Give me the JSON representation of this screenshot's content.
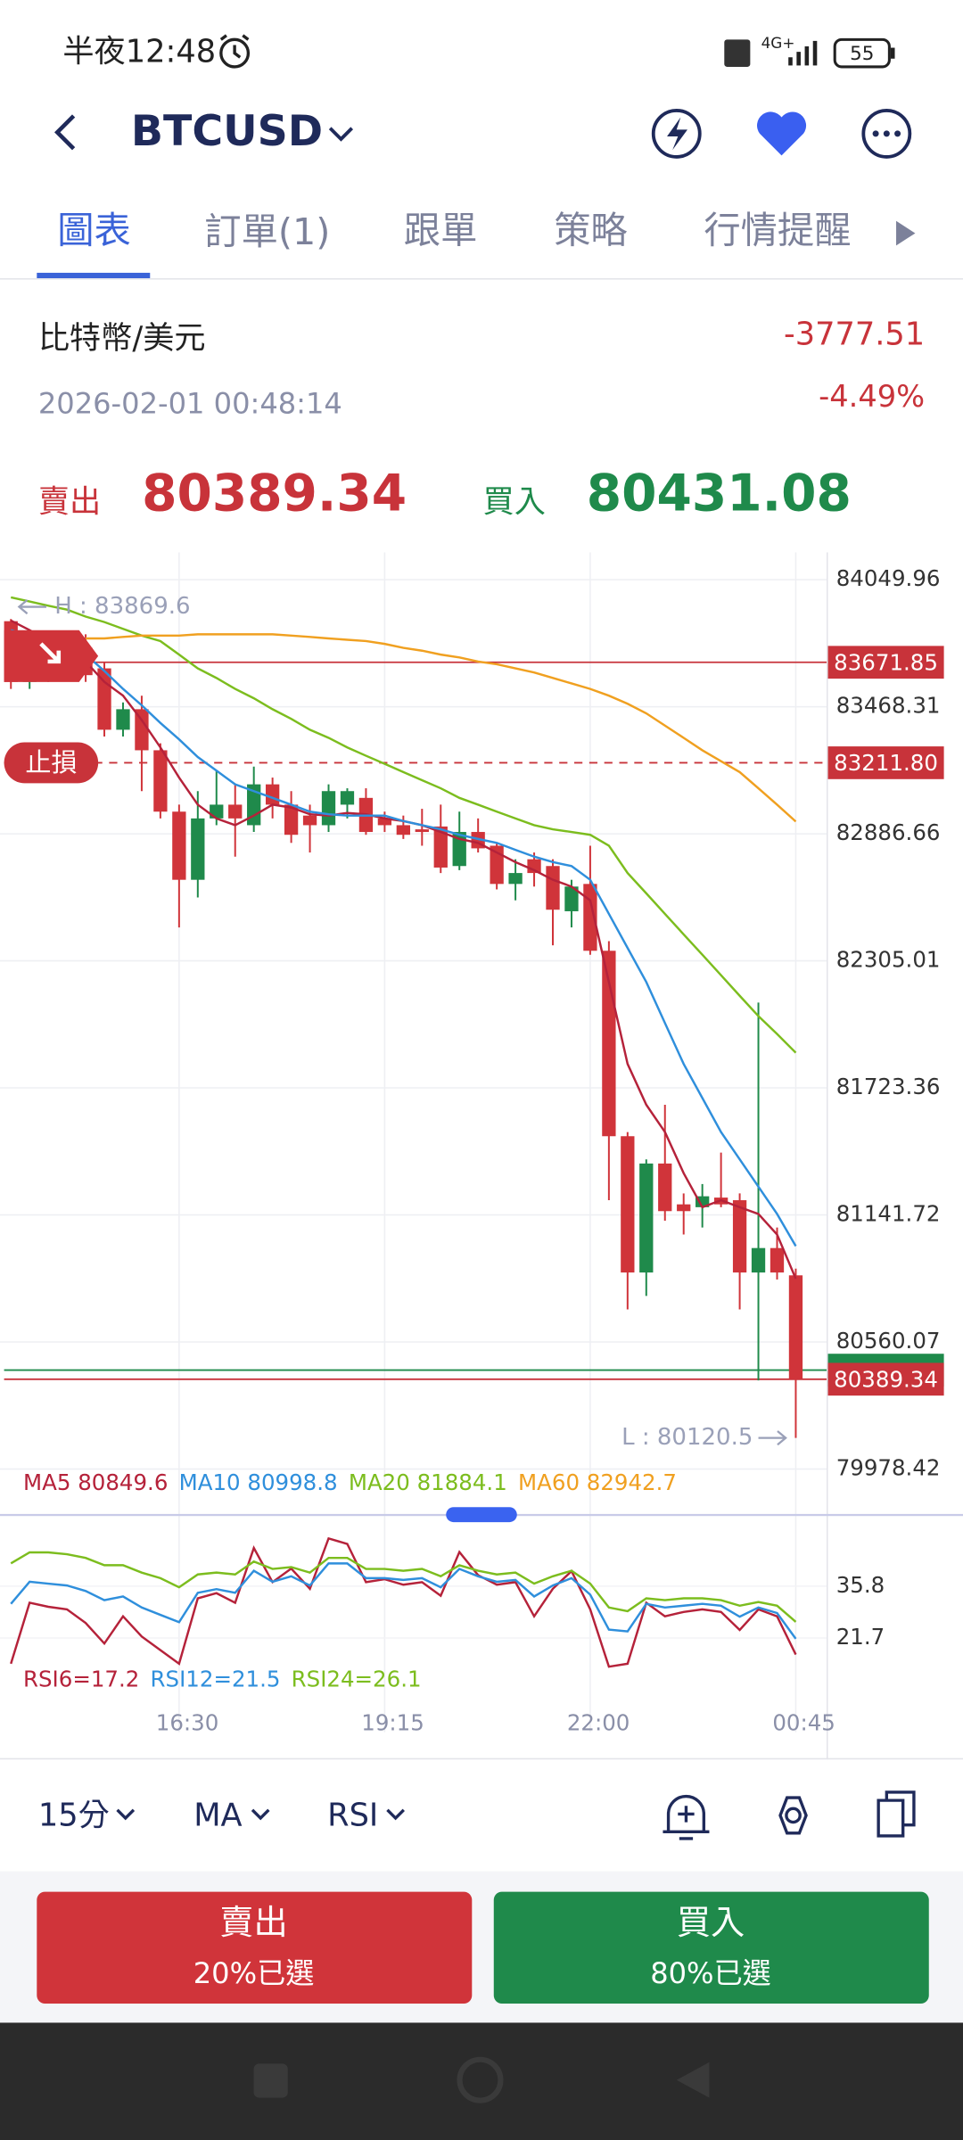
{
  "status_bar": {
    "time": "半夜12:48",
    "network": "4G+",
    "battery": "55"
  },
  "header": {
    "symbol": "BTCUSD"
  },
  "tabs": [
    "圖表",
    "訂單(1)",
    "跟單",
    "策略",
    "行情提醒"
  ],
  "quote": {
    "name": "比特幣/美元",
    "change": "-3777.51",
    "timestamp": "2026-02-01 00:48:14",
    "change_pct": "-4.49%",
    "sell_label": "賣出",
    "sell_price": "80389.34",
    "buy_label": "買入",
    "buy_price": "80431.08"
  },
  "chart_data": {
    "type": "candlestick",
    "categories": [
      null,
      null,
      null,
      null,
      null,
      null,
      null,
      null,
      null,
      "16:30",
      null,
      null,
      null,
      null,
      null,
      null,
      null,
      null,
      null,
      null,
      "19:15",
      null,
      null,
      null,
      null,
      null,
      null,
      null,
      null,
      null,
      null,
      "22:00",
      null,
      null,
      null,
      null,
      null,
      null,
      null,
      null,
      null,
      null,
      "00:45"
    ],
    "open": [
      83860,
      83582,
      83675,
      83644,
      83738,
      83644,
      83363,
      83457,
      83269,
      82988,
      82676,
      82957,
      83020,
      82926,
      83113,
      83020,
      82970,
      82926,
      83020,
      83051,
      82957,
      82926,
      82907,
      82920,
      82739,
      82895,
      82832,
      82657,
      82770,
      82739,
      82532,
      82657,
      82351,
      81502,
      80878,
      81377,
      81190,
      81177,
      81221,
      81209,
      80878,
      80990,
      80865
    ],
    "high": [
      83869.6,
      83769,
      83769,
      83800,
      83800,
      83675,
      83488,
      83519,
      83301,
      83020,
      83082,
      83176,
      83113,
      83194,
      83144,
      83082,
      83020,
      83113,
      83095,
      83095,
      82988,
      82970,
      83001,
      83020,
      82988,
      82957,
      82845,
      82770,
      82801,
      82770,
      82676,
      82832,
      82395,
      81521,
      81396,
      81646,
      81240,
      81283,
      81427,
      81240,
      82114,
      81084,
      80896
    ],
    "low": [
      83550,
      83550,
      83582,
      83613,
      83582,
      83332,
      83332,
      83082,
      82957,
      82458,
      82595,
      82926,
      82782,
      82895,
      82957,
      82845,
      82801,
      82895,
      82957,
      82882,
      82895,
      82863,
      82832,
      82707,
      82720,
      82801,
      82632,
      82582,
      82645,
      82376,
      82458,
      82333,
      81209,
      80709,
      80771,
      81115,
      81052,
      81084,
      81177,
      80709,
      80384,
      80846,
      80120.5
    ],
    "close": [
      83582,
      83675,
      83644,
      83738,
      83613,
      83363,
      83457,
      83269,
      82988,
      82676,
      82957,
      83020,
      82957,
      83113,
      83020,
      82882,
      82926,
      83082,
      83082,
      82895,
      82926,
      82882,
      82895,
      82732,
      82895,
      82820,
      82657,
      82707,
      82707,
      82539,
      82645,
      82351,
      81502,
      80878,
      81377,
      81159,
      81159,
      81227,
      81190,
      80878,
      80990,
      80878,
      80389.34
    ],
    "up_color": "#1f8a4b",
    "down_color": "#d0343a",
    "ylim": [
      79785,
      84175
    ],
    "yticks": [
      84049.96,
      83468.31,
      82886.66,
      82305.01,
      81723.36,
      81141.72,
      80560.07,
      79978.42
    ],
    "grid": true,
    "high_mark": {
      "value": 83869.6,
      "label": "H : 83869.6"
    },
    "low_mark": {
      "value": 80120.5,
      "label": "L : 80120.5"
    },
    "price_lines": [
      {
        "value": 83671.85,
        "color": "#c8333a"
      },
      {
        "value": 83211.8,
        "label": "83211.80",
        "color": "#c8333a",
        "dashed": true,
        "note": "止損"
      },
      {
        "value": 80431.08,
        "color": "#1f8a4b",
        "label_visible": false
      },
      {
        "value": 80389.34,
        "color": "#c8333a"
      }
    ],
    "series": [
      {
        "name": "MA5 80849.6",
        "color": "#b5223a",
        "values": [
          83863,
          83819,
          83769,
          83719,
          83675,
          83582,
          83519,
          83407,
          83282,
          83144,
          83020,
          82957,
          82926,
          82970,
          83020,
          83007,
          82976,
          82970,
          82982,
          82976,
          82957,
          82945,
          82926,
          82895,
          82863,
          82845,
          82801,
          82757,
          82720,
          82676,
          82645,
          82582,
          82208,
          81833,
          81646,
          81521,
          81333,
          81177,
          81209,
          81177,
          81146,
          81052,
          80849.6
        ]
      },
      {
        "name": "MA10 80998.8",
        "color": "#2f8fdc",
        "values": [
          83819,
          83794,
          83756,
          83732,
          83707,
          83632,
          83550,
          83475,
          83394,
          83319,
          83238,
          83176,
          83113,
          83082,
          83051,
          83020,
          82988,
          82976,
          82970,
          82970,
          82970,
          82945,
          82926,
          82907,
          82882,
          82863,
          82845,
          82813,
          82782,
          82757,
          82739,
          82676,
          82520,
          82364,
          82208,
          82020,
          81833,
          81677,
          81521,
          81396,
          81271,
          81146,
          80998.8
        ]
      },
      {
        "name": "MA20 81884.1",
        "color": "#7cbd1e",
        "values": [
          83969,
          83950,
          83931,
          83913,
          83881,
          83856,
          83825,
          83794,
          83769,
          83707,
          83644,
          83600,
          83550,
          83507,
          83457,
          83413,
          83363,
          83326,
          83282,
          83244,
          83207,
          83169,
          83132,
          83095,
          83051,
          83020,
          82988,
          82957,
          82926,
          82907,
          82895,
          82882,
          82832,
          82707,
          82614,
          82520,
          82426,
          82333,
          82239,
          82145,
          82052,
          81970,
          81884.1
        ]
      },
      {
        "name": "MA60 82942.7",
        "color": "#f0a020",
        "values": [
          null,
          null,
          null,
          null,
          83781,
          83781,
          83788,
          83794,
          83794,
          83794,
          83800,
          83800,
          83800,
          83800,
          83800,
          83794,
          83788,
          83781,
          83775,
          83769,
          83756,
          83738,
          83725,
          83707,
          83694,
          83675,
          83663,
          83644,
          83625,
          83600,
          83575,
          83550,
          83519,
          83482,
          83438,
          83382,
          83326,
          83269,
          83219,
          83169,
          83095,
          83020,
          82942.7
        ]
      }
    ],
    "rsi": {
      "type": "line",
      "ylim": [
        3.5,
        53.6
      ],
      "yticks": [
        35.8,
        21.7
      ],
      "series": [
        {
          "name": "RSI6=17.2",
          "color": "#b5223a",
          "values": [
            14.7,
            31.3,
            30.2,
            29.5,
            25.8,
            20.2,
            27.6,
            22.1,
            18.4,
            14.7,
            32.5,
            33.9,
            31.3,
            46.2,
            36.9,
            40.6,
            35.1,
            48.8,
            47.3,
            36.9,
            37.7,
            36.2,
            36.9,
            33.2,
            45.1,
            38.8,
            36.2,
            36.9,
            27.6,
            35.1,
            39.9,
            29.5,
            13.9,
            14.7,
            31.3,
            27.6,
            28.8,
            29.5,
            28.8,
            23.9,
            29.5,
            27.6,
            17.2
          ]
        },
        {
          "name": "RSI12=21.5",
          "color": "#2f8fdc",
          "values": [
            31,
            37,
            36.5,
            36,
            34.5,
            32,
            33,
            30,
            28,
            26,
            34,
            35,
            34,
            40,
            37,
            38.5,
            36,
            42,
            42,
            38,
            38,
            37.5,
            38,
            35.5,
            40.5,
            38.5,
            37,
            37.5,
            33,
            36,
            38,
            33.5,
            24,
            23.5,
            31,
            30,
            30.5,
            31,
            30.5,
            27.5,
            30,
            28.5,
            21.5
          ]
        },
        {
          "name": "RSI24=26.1",
          "color": "#7cbd1e",
          "values": [
            42,
            45,
            45,
            44.5,
            43.5,
            41.5,
            41.5,
            39.5,
            38,
            35.5,
            39,
            39.5,
            39,
            42.5,
            40.5,
            41,
            39.5,
            43.5,
            43.5,
            40.5,
            40.5,
            40,
            40.5,
            38.5,
            41.5,
            40,
            39,
            39.5,
            36.5,
            38.5,
            40,
            36.5,
            30,
            29,
            32.5,
            32,
            32.5,
            32.5,
            32,
            30.5,
            31.5,
            30.5,
            26.1
          ]
        }
      ]
    }
  },
  "toolbar": {
    "interval": "15分",
    "main_indicator": "MA",
    "sub_indicator": "RSI"
  },
  "buttons": {
    "sell": {
      "label": "賣出",
      "sub": "20%已選"
    },
    "buy": {
      "label": "買入",
      "sub": "80%已選"
    }
  }
}
